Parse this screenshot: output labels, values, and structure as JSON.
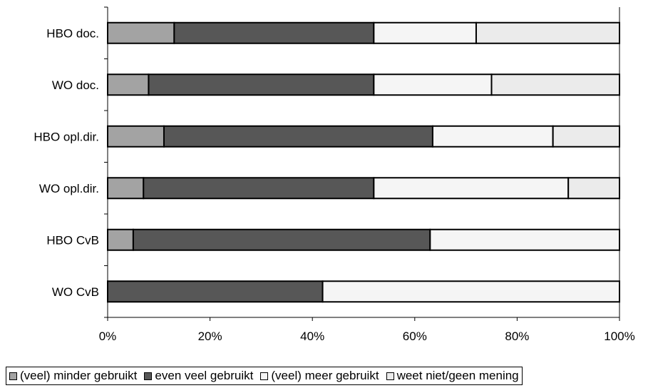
{
  "chart_data": {
    "type": "bar",
    "orientation": "horizontal",
    "stacked": true,
    "categories": [
      "HBO doc.",
      "WO doc.",
      "HBO opl.dir.",
      "WO opl.dir.",
      "HBO CvB",
      "WO CvB"
    ],
    "series": [
      {
        "name": "(veel) minder gebruikt",
        "color": "#a3a3a3",
        "values": [
          13,
          8,
          11,
          7,
          5,
          0
        ]
      },
      {
        "name": "even veel gebruikt",
        "color": "#575757",
        "values": [
          39,
          44,
          52.5,
          45,
          58,
          42
        ]
      },
      {
        "name": "(veel) meer gebruikt",
        "color": "#f5f5f5",
        "values": [
          20,
          23,
          23.5,
          38,
          37,
          58
        ]
      },
      {
        "name": "weet niet/geen mening",
        "color": "#ebebeb",
        "values": [
          28,
          25,
          13,
          10,
          0,
          0
        ]
      }
    ],
    "xlim": [
      0,
      100
    ],
    "x_ticks": [
      "0%",
      "20%",
      "40%",
      "60%",
      "80%",
      "100%"
    ],
    "grid": false,
    "legend_position": "bottom"
  }
}
